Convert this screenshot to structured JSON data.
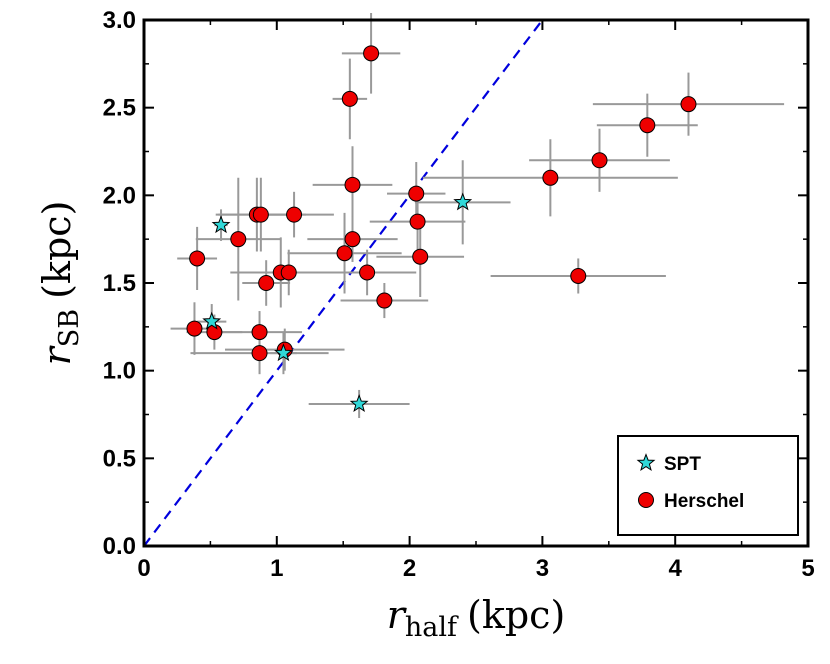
{
  "chart_data": {
    "type": "scatter",
    "xlabel": {
      "main": "r",
      "sub": "half",
      "unit": "(kpc)"
    },
    "ylabel": {
      "main": "r",
      "sub": "SB",
      "unit": "(kpc)"
    },
    "xlim": [
      0,
      5
    ],
    "ylim": [
      0,
      3.0
    ],
    "x_ticks": [
      "0",
      "1",
      "2",
      "3",
      "4",
      "5"
    ],
    "y_ticks": [
      "0.0",
      "0.5",
      "1.0",
      "1.5",
      "2.0",
      "2.5",
      "3.0"
    ],
    "grid": false,
    "legend_position": "bottom-right",
    "reference_line": {
      "style": "dashed",
      "color": "#0000dd",
      "relation": "y = x"
    },
    "series": [
      {
        "name": "SPT",
        "marker": "star",
        "color": "#30d8d8",
        "points": [
          {
            "x": 0.58,
            "y": 1.83,
            "xerr": 0.05,
            "yerr": 0.09
          },
          {
            "x": 2.4,
            "y": 1.96,
            "xerr": 0.36,
            "yerr": 0.24
          },
          {
            "x": 0.51,
            "y": 1.28,
            "xerr": 0.11,
            "yerr": 0.1
          },
          {
            "x": 1.05,
            "y": 1.1,
            "xerr": 0.1,
            "yerr": 0.12
          },
          {
            "x": 1.62,
            "y": 0.81,
            "xerr": 0.38,
            "yerr": 0.08
          }
        ]
      },
      {
        "name": "Herschel",
        "marker": "circle",
        "color": "#ee0000",
        "points": [
          {
            "x": 1.71,
            "y": 2.81,
            "xerr": 0.22,
            "yerr": 0.23
          },
          {
            "x": 1.55,
            "y": 2.55,
            "xerr": 0.13,
            "yerr": 0.23
          },
          {
            "x": 4.1,
            "y": 2.52,
            "xerr": 0.72,
            "yerr": 0.18
          },
          {
            "x": 3.79,
            "y": 2.4,
            "xerr": 0.38,
            "yerr": 0.18
          },
          {
            "x": 3.43,
            "y": 2.2,
            "xerr": 0.53,
            "yerr": 0.18
          },
          {
            "x": 3.06,
            "y": 2.1,
            "xerr": 0.96,
            "yerr": 0.22
          },
          {
            "x": 1.57,
            "y": 2.06,
            "xerr": 0.3,
            "yerr": 0.22
          },
          {
            "x": 2.05,
            "y": 2.01,
            "xerr": 0.22,
            "yerr": 0.18
          },
          {
            "x": 0.85,
            "y": 1.89,
            "xerr": 0.29,
            "yerr": 0.21
          },
          {
            "x": 0.88,
            "y": 1.89,
            "xerr": 0.34,
            "yerr": 0.21
          },
          {
            "x": 1.13,
            "y": 1.89,
            "xerr": 0.3,
            "yerr": 0.13
          },
          {
            "x": 2.06,
            "y": 1.85,
            "xerr": 0.36,
            "yerr": 0.18
          },
          {
            "x": 0.71,
            "y": 1.75,
            "xerr": 0.32,
            "yerr": 0.35
          },
          {
            "x": 1.57,
            "y": 1.75,
            "xerr": 0.34,
            "yerr": 0.13
          },
          {
            "x": 1.51,
            "y": 1.67,
            "xerr": 0.43,
            "yerr": 0.23
          },
          {
            "x": 2.08,
            "y": 1.65,
            "xerr": 0.33,
            "yerr": 0.23
          },
          {
            "x": 0.4,
            "y": 1.64,
            "xerr": 0.15,
            "yerr": 0.18
          },
          {
            "x": 1.03,
            "y": 1.56,
            "xerr": 0.38,
            "yerr": 0.2
          },
          {
            "x": 1.09,
            "y": 1.56,
            "xerr": 0.13,
            "yerr": 0.13
          },
          {
            "x": 1.68,
            "y": 1.56,
            "xerr": 0.37,
            "yerr": 0.13
          },
          {
            "x": 3.27,
            "y": 1.54,
            "xerr": 0.66,
            "yerr": 0.1
          },
          {
            "x": 0.92,
            "y": 1.5,
            "xerr": 0.18,
            "yerr": 0.13
          },
          {
            "x": 1.81,
            "y": 1.4,
            "xerr": 0.33,
            "yerr": 0.1
          },
          {
            "x": 0.38,
            "y": 1.24,
            "xerr": 0.18,
            "yerr": 0.15
          },
          {
            "x": 0.53,
            "y": 1.22,
            "xerr": 0.21,
            "yerr": 0.1
          },
          {
            "x": 0.87,
            "y": 1.22,
            "xerr": 0.32,
            "yerr": 0.12
          },
          {
            "x": 0.87,
            "y": 1.1,
            "xerr": 0.52,
            "yerr": 0.12
          },
          {
            "x": 1.06,
            "y": 1.12,
            "xerr": 0.45,
            "yerr": 0.12
          }
        ]
      }
    ]
  }
}
